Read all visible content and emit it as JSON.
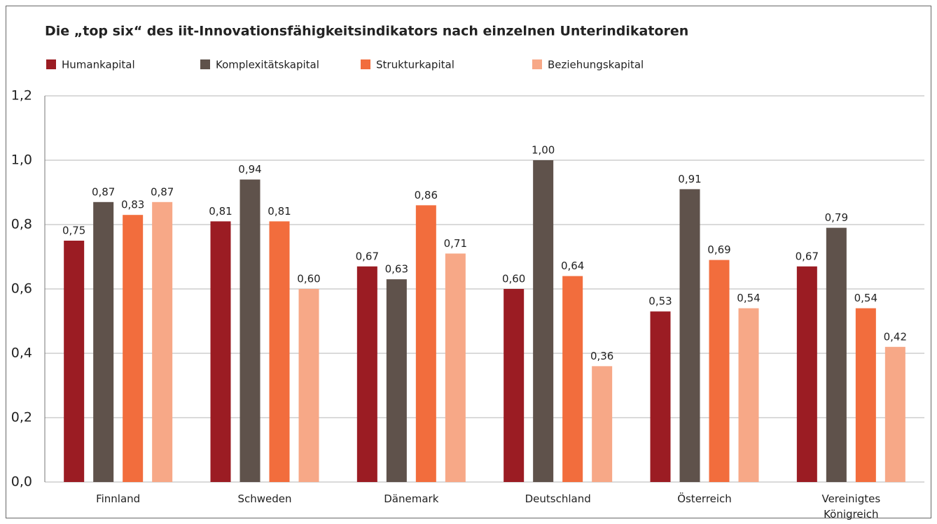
{
  "chart_data": {
    "type": "bar",
    "title": "Die „top six“ des iit-Innovationsfähigkeitsindikators nach einzelnen Unterindikatoren",
    "categories": [
      "Finnland",
      "Schweden",
      "Dänemark",
      "Deutschland",
      "Österreich",
      "Vereinigtes Königreich"
    ],
    "series": [
      {
        "name": "Humankapital",
        "color": "#9b1c23",
        "values": [
          0.75,
          0.81,
          0.67,
          0.6,
          0.53,
          0.67
        ],
        "value_labels": [
          "0,75",
          "0,81",
          "0,67",
          "0,60",
          "0,53",
          "0,67"
        ]
      },
      {
        "name": "Komplexitätskapital",
        "color": "#5f524b",
        "values": [
          0.87,
          0.94,
          0.63,
          1.0,
          0.91,
          0.79
        ],
        "value_labels": [
          "0,87",
          "0,94",
          "0,63",
          "1,00",
          "0,91",
          "0,79"
        ]
      },
      {
        "name": "Strukturkapital",
        "color": "#f26d3d",
        "values": [
          0.83,
          0.81,
          0.86,
          0.64,
          0.69,
          0.54
        ],
        "value_labels": [
          "0,83",
          "0,81",
          "0,86",
          "0,64",
          "0,69",
          "0,54"
        ]
      },
      {
        "name": "Beziehungskapital",
        "color": "#f7a887",
        "values": [
          0.87,
          0.6,
          0.71,
          0.36,
          0.54,
          0.42
        ],
        "value_labels": [
          "0,87",
          "0,60",
          "0,71",
          "0,36",
          "0,54",
          "0,42"
        ]
      }
    ],
    "ylim": [
      0,
      1.2
    ],
    "yticks": [
      {
        "value": 0,
        "label": "0,0"
      },
      {
        "value": 0.2,
        "label": "0,2"
      },
      {
        "value": 0.4,
        "label": "0,4"
      },
      {
        "value": 0.6,
        "label": "0,6"
      },
      {
        "value": 0.8,
        "label": "0,8"
      },
      {
        "value": 1.0,
        "label": "1,0"
      },
      {
        "value": 1.2,
        "label": "1,2"
      }
    ],
    "grid": true
  }
}
